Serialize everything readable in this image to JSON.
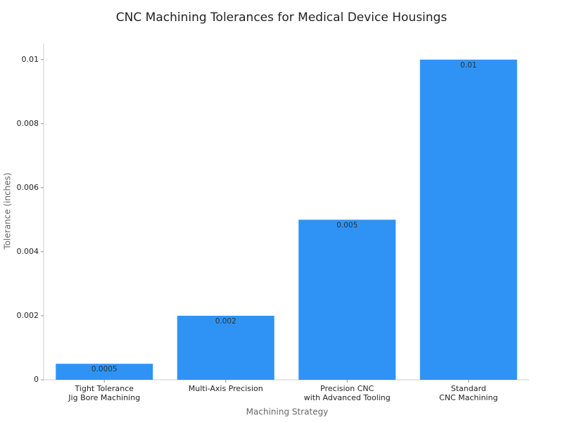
{
  "chart_data": {
    "type": "bar",
    "title": "CNC Machining Tolerances for Medical Device Housings",
    "x_label": "Machining Strategy",
    "y_label": "Tolerance (inches)",
    "categories": [
      [
        "Tight Tolerance",
        "Jig Bore Machining"
      ],
      [
        "Multi-Axis Precision"
      ],
      [
        "Precision CNC",
        "with Advanced Tooling"
      ],
      [
        "Standard",
        "CNC Machining"
      ]
    ],
    "values": [
      0.0005,
      0.002,
      0.005,
      0.01
    ],
    "color": "#2e93f5",
    "ylim": [
      0,
      0.0105
    ],
    "yticks": [
      0,
      0.002,
      0.004,
      0.006,
      0.008,
      0.01
    ],
    "grid": false
  }
}
